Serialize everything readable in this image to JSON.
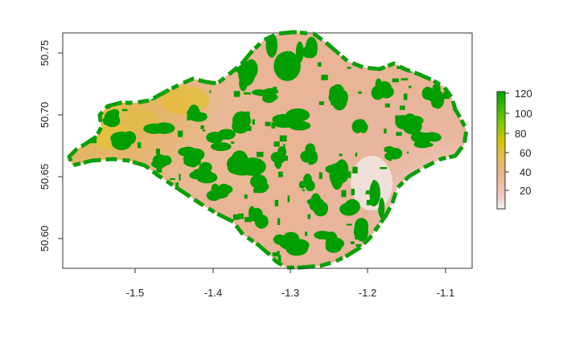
{
  "chart_data": {
    "type": "raster-map",
    "x_axis": {
      "ticks": [
        -1.5,
        -1.4,
        -1.3,
        -1.2,
        -1.1
      ],
      "range": [
        -1.585,
        -1.065
      ]
    },
    "y_axis": {
      "ticks": [
        50.6,
        50.65,
        50.7,
        50.75
      ],
      "range": [
        50.575,
        50.766
      ]
    },
    "legend": {
      "position": "right",
      "ticks": [
        20,
        40,
        60,
        80,
        100,
        120
      ],
      "range": [
        0,
        125
      ],
      "color_stops": [
        "#f2f2f2",
        "#ecb6a5",
        "#e5b95a",
        "#d8c400",
        "#7ccd00",
        "#00a600"
      ]
    },
    "colors": {
      "water": "#ffffff",
      "low": "#f0d8d0",
      "mid_low": "#ebb69a",
      "mid": "#e5b95a",
      "high": "#009e00"
    }
  },
  "x_tick_labels": [
    "-1.5",
    "-1.4",
    "-1.3",
    "-1.2",
    "-1.1"
  ],
  "y_tick_labels": [
    "50.60",
    "50.65",
    "50.70",
    "50.75"
  ],
  "legend_tick_labels": [
    "20",
    "40",
    "60",
    "80",
    "100",
    "120"
  ]
}
